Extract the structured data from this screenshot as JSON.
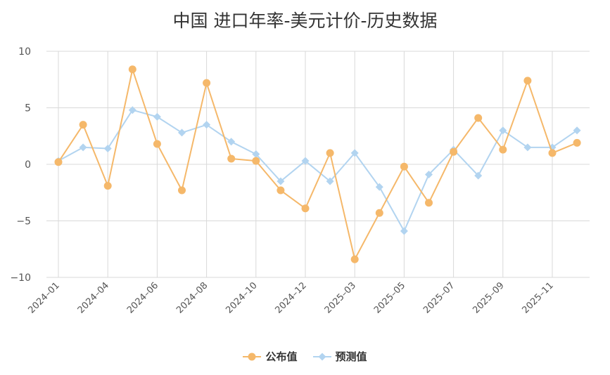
{
  "title": "中国 进口年率-美元计价-历史数据",
  "legend": [
    {
      "name": "公布值",
      "color": "#F5B86A",
      "marker": "circle"
    },
    {
      "name": "预测值",
      "color": "#B2D4F0",
      "marker": "diamond"
    }
  ],
  "chart_data": {
    "type": "line",
    "title": "中国 进口年率-美元计价-历史数据",
    "xlabel": "",
    "ylabel": "",
    "ylim": [
      -10,
      10
    ],
    "yticks": [
      10,
      5,
      0,
      -5,
      -10
    ],
    "ytick_labels": [
      "10",
      "5",
      "0",
      "−5",
      "−10"
    ],
    "x": [
      "2024-01",
      "2024-03",
      "2024-04",
      "2024-05",
      "2024-06",
      "2024-07",
      "2024-08",
      "2024-09",
      "2024-10",
      "2024-11",
      "2024-12",
      "2025-01",
      "2025-03",
      "2025-04",
      "2025-05",
      "2025-06",
      "2025-07",
      "2025-08",
      "2025-09",
      "2025-10",
      "2025-11",
      "2025-12"
    ],
    "xtick_labels": [
      "2024–01",
      "2024–04",
      "2024–06",
      "2024–08",
      "2024–10",
      "2024–12",
      "2025–03",
      "2025–05",
      "2025–07",
      "2025–09",
      "2025–11"
    ],
    "xtick_index": [
      0,
      2,
      4,
      6,
      8,
      10,
      12,
      14,
      16,
      18,
      20
    ],
    "grid": true,
    "legend_position": "bottom-center",
    "series": [
      {
        "name": "公布值",
        "color": "#F5B86A",
        "marker": "circle",
        "values": [
          0.2,
          3.5,
          -1.9,
          8.4,
          1.8,
          -2.3,
          7.2,
          0.5,
          0.3,
          -2.3,
          -3.9,
          1.0,
          -8.4,
          -4.3,
          -0.2,
          -3.4,
          1.1,
          4.1,
          1.3,
          7.4,
          1.0,
          1.9
        ]
      },
      {
        "name": "预测值",
        "color": "#B2D4F0",
        "marker": "diamond",
        "values": [
          0.3,
          1.5,
          1.4,
          4.8,
          4.2,
          2.8,
          3.5,
          2.0,
          0.9,
          -1.5,
          0.3,
          -1.5,
          1.0,
          -2.0,
          -5.9,
          -0.9,
          1.3,
          -1.0,
          3.0,
          1.5,
          1.5,
          3.0
        ]
      }
    ]
  }
}
